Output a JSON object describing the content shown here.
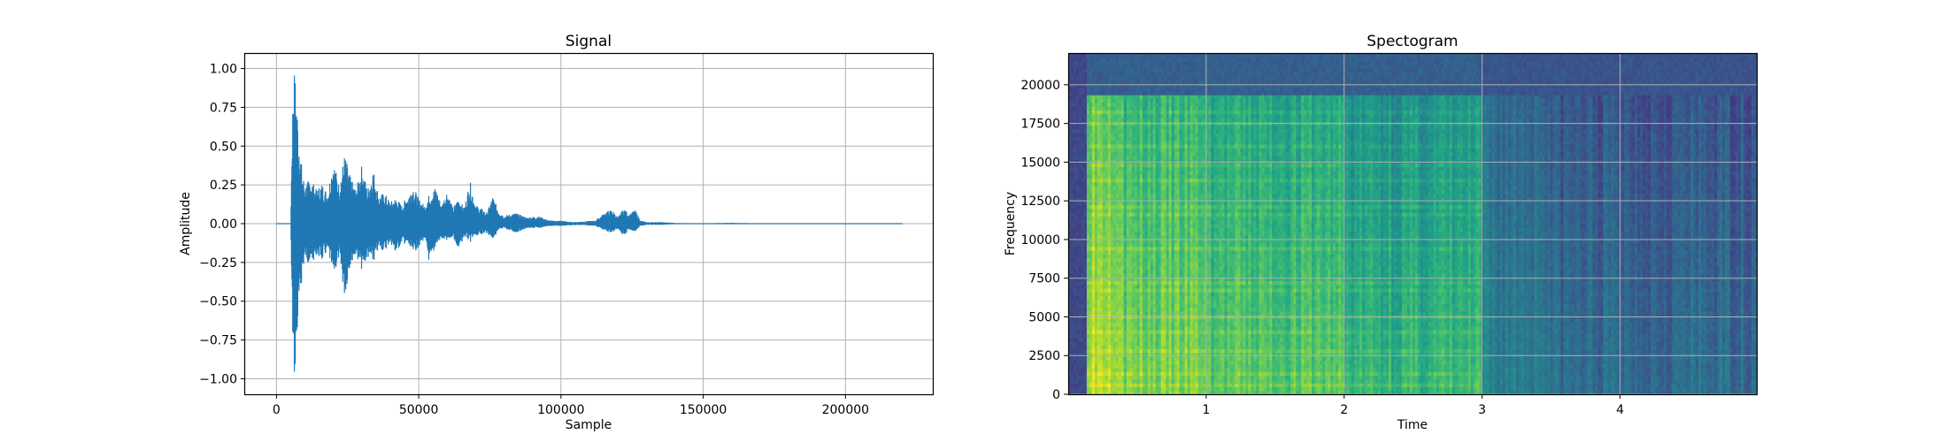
{
  "chart_data": [
    {
      "type": "line",
      "title": "Signal",
      "xlabel": "Sample",
      "ylabel": "Amplitude",
      "xlim": [
        -11000,
        231000
      ],
      "ylim": [
        -1.1,
        1.1
      ],
      "xticks": [
        0,
        50000,
        100000,
        150000,
        200000
      ],
      "xtick_labels": [
        "0",
        "50000",
        "100000",
        "150000",
        "200000"
      ],
      "yticks": [
        -1.0,
        -0.75,
        -0.5,
        -0.25,
        0.0,
        0.25,
        0.5,
        0.75,
        1.0
      ],
      "ytick_labels": [
        "−1.00",
        "−0.75",
        "−0.50",
        "−0.25",
        "0.00",
        "0.25",
        "0.50",
        "0.75",
        "1.00"
      ],
      "grid": true,
      "color": "#1f77b4",
      "series": [
        {
          "x": [
            0,
            5000,
            5500,
            6000,
            6500,
            7000,
            8000,
            9000,
            10000,
            12000,
            14000,
            16000,
            18000,
            20000,
            22000,
            24000,
            26000,
            28000,
            30000,
            32000,
            34000,
            36000,
            38000,
            40000,
            42000,
            44000,
            46000,
            48000,
            50000,
            52000,
            54000,
            56000,
            58000,
            60000,
            62000,
            64000,
            66000,
            68000,
            70000,
            72000,
            74000,
            76000,
            78000,
            80000,
            84000,
            88000,
            92000,
            96000,
            100000,
            104000,
            108000,
            112000,
            116000,
            118000,
            120000,
            122000,
            124000,
            126000,
            128000,
            130000,
            135000,
            140000,
            150000,
            160000,
            170000,
            180000,
            190000,
            200000,
            210000,
            220000
          ],
          "y_max": [
            0.0,
            0.0,
            0.62,
            1.0,
            0.98,
            0.85,
            0.55,
            0.35,
            0.25,
            0.3,
            0.22,
            0.26,
            0.2,
            0.42,
            0.25,
            0.45,
            0.3,
            0.22,
            0.38,
            0.22,
            0.36,
            0.18,
            0.2,
            0.14,
            0.17,
            0.12,
            0.18,
            0.25,
            0.16,
            0.12,
            0.2,
            0.24,
            0.12,
            0.22,
            0.1,
            0.17,
            0.1,
            0.28,
            0.12,
            0.1,
            0.07,
            0.18,
            0.09,
            0.05,
            0.07,
            0.04,
            0.05,
            0.02,
            0.02,
            0.01,
            0.015,
            0.02,
            0.08,
            0.09,
            0.04,
            0.1,
            0.06,
            0.09,
            0.02,
            0.01,
            0.01,
            0.005,
            0.003,
            0.006,
            0.003,
            0.002,
            0.002,
            0.002,
            0.002,
            0.002
          ],
          "y_min": [
            0.0,
            0.0,
            -0.6,
            -1.0,
            -0.98,
            -0.85,
            -0.55,
            -0.35,
            -0.22,
            -0.28,
            -0.2,
            -0.24,
            -0.18,
            -0.35,
            -0.22,
            -0.48,
            -0.26,
            -0.2,
            -0.3,
            -0.22,
            -0.26,
            -0.16,
            -0.18,
            -0.12,
            -0.2,
            -0.12,
            -0.14,
            -0.2,
            -0.15,
            -0.1,
            -0.28,
            -0.14,
            -0.1,
            -0.12,
            -0.08,
            -0.18,
            -0.08,
            -0.12,
            -0.08,
            -0.07,
            -0.06,
            -0.1,
            -0.05,
            -0.03,
            -0.06,
            -0.03,
            -0.03,
            -0.015,
            -0.015,
            -0.01,
            -0.01,
            -0.015,
            -0.05,
            -0.06,
            -0.03,
            -0.08,
            -0.04,
            -0.05,
            -0.015,
            -0.008,
            -0.008,
            -0.004,
            -0.003,
            -0.004,
            -0.002,
            -0.002,
            -0.002,
            -0.002,
            -0.002,
            -0.002
          ]
        }
      ]
    },
    {
      "type": "heatmap",
      "title": "Spectogram",
      "xlabel": "Time",
      "ylabel": "Frequency",
      "xlim": [
        0,
        4.99
      ],
      "ylim": [
        0,
        22050
      ],
      "xticks": [
        1,
        2,
        3,
        4
      ],
      "xtick_labels": [
        "1",
        "2",
        "3",
        "4"
      ],
      "yticks": [
        0,
        2500,
        5000,
        7500,
        10000,
        12500,
        15000,
        17500,
        20000
      ],
      "ytick_labels": [
        "0",
        "2500",
        "5000",
        "7500",
        "10000",
        "12500",
        "15000",
        "17500",
        "20000"
      ],
      "grid": true,
      "colormap": "viridis",
      "onset_time": 0.13,
      "bright_end_time": 2.99,
      "high_freq_cutoff": 19400,
      "time_bands": [
        {
          "time": [
            0.0,
            0.13
          ],
          "energy": 0.2
        },
        {
          "time": [
            0.13,
            0.4
          ],
          "energy": 0.92
        },
        {
          "time": [
            0.4,
            1.0
          ],
          "energy": 0.8
        },
        {
          "time": [
            1.0,
            2.0
          ],
          "energy": 0.74
        },
        {
          "time": [
            2.0,
            2.99
          ],
          "energy": 0.66
        },
        {
          "time": [
            2.99,
            3.5
          ],
          "energy": 0.44
        },
        {
          "time": [
            3.5,
            4.99
          ],
          "energy": 0.36
        }
      ]
    }
  ]
}
